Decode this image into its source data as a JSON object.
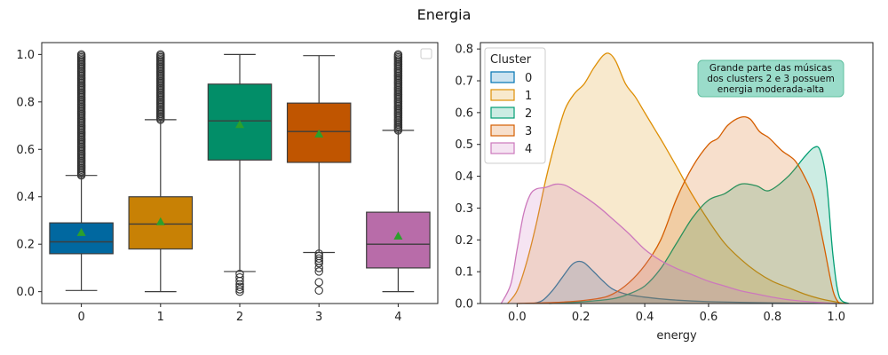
{
  "figure": {
    "suptitle": "Energia"
  },
  "chart_data": [
    {
      "type": "box",
      "title": "",
      "xlabel": "",
      "ylabel": "",
      "categories": [
        "0",
        "1",
        "2",
        "3",
        "4"
      ],
      "ylim": [
        -0.05,
        1.05
      ],
      "yticks": [
        "0.0",
        "0.2",
        "0.4",
        "0.6",
        "0.8",
        "1.0"
      ],
      "show_means": true,
      "mean_marker_color": "#2ca02c",
      "empty_legend": true,
      "boxes": [
        {
          "category": "0",
          "color": "#0173b2",
          "whisker_low": 0.005,
          "q1": 0.16,
          "median": 0.21,
          "q3": 0.29,
          "whisker_high": 0.49,
          "mean": 0.25,
          "fliers_low": [],
          "fliers_high_range": [
            0.49,
            1.0
          ]
        },
        {
          "category": "1",
          "color": "#de8f05",
          "whisker_low": 0.0,
          "q1": 0.18,
          "median": 0.285,
          "q3": 0.4,
          "whisker_high": 0.725,
          "mean": 0.295,
          "fliers_low": [],
          "fliers_high_range": [
            0.725,
            1.0
          ]
        },
        {
          "category": "2",
          "color": "#029e73",
          "whisker_low": 0.085,
          "q1": 0.555,
          "median": 0.72,
          "q3": 0.875,
          "whisker_high": 1.0,
          "mean": 0.705,
          "fliers_low": [
            0.0,
            0.01,
            0.02,
            0.03,
            0.045,
            0.06,
            0.075
          ],
          "fliers_high_range": null
        },
        {
          "category": "3",
          "color": "#d55e00",
          "whisker_low": 0.165,
          "q1": 0.545,
          "median": 0.675,
          "q3": 0.795,
          "whisker_high": 0.995,
          "mean": 0.665,
          "fliers_low": [
            0.005,
            0.04,
            0.085,
            0.1,
            0.12,
            0.13,
            0.14,
            0.15,
            0.16
          ],
          "fliers_high_range": null
        },
        {
          "category": "4",
          "color": "#cc78bc",
          "whisker_low": 0.0,
          "q1": 0.1,
          "median": 0.2,
          "q3": 0.335,
          "whisker_high": 0.68,
          "mean": 0.235,
          "fliers_low": [],
          "fliers_high_range": [
            0.68,
            1.0
          ]
        }
      ]
    },
    {
      "type": "kde",
      "title": "",
      "xlabel": "energy",
      "ylabel": "",
      "xlim": [
        -0.115,
        1.115
      ],
      "ylim": [
        0,
        0.82
      ],
      "xticks": [
        "0.0",
        "0.2",
        "0.4",
        "0.6",
        "0.8",
        "1.0"
      ],
      "yticks": [
        "0.0",
        "0.1",
        "0.2",
        "0.3",
        "0.4",
        "0.5",
        "0.6",
        "0.7",
        "0.8"
      ],
      "legend": {
        "title": "Cluster",
        "placement": "upper-left",
        "entries": [
          "0",
          "1",
          "2",
          "3",
          "4"
        ]
      },
      "annotation": {
        "text_lines": [
          "Grande parte das músicas",
          "dos clusters 2 e 3 possuem",
          "energia moderada-alta"
        ],
        "box_color": "#8fd8c4",
        "edge_color": "#5fbf9f"
      },
      "series": [
        {
          "name": "0",
          "color": "#0173b2",
          "x": [
            0.05,
            0.08,
            0.11,
            0.14,
            0.17,
            0.19,
            0.21,
            0.24,
            0.27,
            0.3,
            0.34,
            0.4,
            0.48,
            0.6,
            0.8,
            1.0
          ],
          "y": [
            0.0,
            0.01,
            0.04,
            0.08,
            0.12,
            0.132,
            0.128,
            0.1,
            0.07,
            0.045,
            0.03,
            0.02,
            0.012,
            0.006,
            0.002,
            0.0
          ]
        },
        {
          "name": "1",
          "color": "#de8f05",
          "x": [
            -0.03,
            0.0,
            0.03,
            0.06,
            0.09,
            0.12,
            0.15,
            0.18,
            0.21,
            0.24,
            0.27,
            0.29,
            0.31,
            0.34,
            0.37,
            0.4,
            0.43,
            0.46,
            0.5,
            0.55,
            0.6,
            0.65,
            0.7,
            0.75,
            0.8,
            0.85,
            0.9,
            0.95,
            1.0,
            1.03
          ],
          "y": [
            0.0,
            0.04,
            0.13,
            0.25,
            0.39,
            0.51,
            0.61,
            0.66,
            0.69,
            0.74,
            0.78,
            0.785,
            0.76,
            0.69,
            0.65,
            0.6,
            0.55,
            0.5,
            0.43,
            0.34,
            0.26,
            0.19,
            0.14,
            0.1,
            0.07,
            0.05,
            0.03,
            0.015,
            0.005,
            0.0
          ]
        },
        {
          "name": "2",
          "color": "#029e73",
          "x": [
            0.1,
            0.2,
            0.3,
            0.35,
            0.4,
            0.45,
            0.5,
            0.55,
            0.6,
            0.65,
            0.7,
            0.75,
            0.79,
            0.85,
            0.9,
            0.93,
            0.95,
            0.97,
            0.99,
            1.01,
            1.04
          ],
          "y": [
            0.0,
            0.005,
            0.015,
            0.03,
            0.055,
            0.11,
            0.19,
            0.27,
            0.325,
            0.345,
            0.375,
            0.37,
            0.355,
            0.4,
            0.46,
            0.49,
            0.48,
            0.38,
            0.15,
            0.02,
            0.0
          ]
        },
        {
          "name": "3",
          "color": "#d55e00",
          "x": [
            0.0,
            0.15,
            0.25,
            0.3,
            0.35,
            0.4,
            0.45,
            0.5,
            0.55,
            0.6,
            0.63,
            0.66,
            0.7,
            0.73,
            0.76,
            0.79,
            0.83,
            0.87,
            0.9,
            0.93,
            0.96,
            0.99,
            1.01
          ],
          "y": [
            0.0,
            0.005,
            0.015,
            0.03,
            0.065,
            0.12,
            0.2,
            0.33,
            0.43,
            0.5,
            0.52,
            0.56,
            0.585,
            0.58,
            0.54,
            0.52,
            0.48,
            0.45,
            0.4,
            0.33,
            0.19,
            0.04,
            0.0
          ]
        },
        {
          "name": "4",
          "color": "#cc78bc",
          "x": [
            -0.05,
            -0.02,
            0.0,
            0.02,
            0.04,
            0.06,
            0.09,
            0.12,
            0.15,
            0.18,
            0.22,
            0.26,
            0.3,
            0.35,
            0.4,
            0.45,
            0.5,
            0.55,
            0.6,
            0.65,
            0.7,
            0.75,
            0.8,
            0.85,
            0.9,
            0.95,
            1.0
          ],
          "y": [
            0.0,
            0.06,
            0.17,
            0.28,
            0.34,
            0.36,
            0.365,
            0.375,
            0.372,
            0.355,
            0.33,
            0.3,
            0.265,
            0.22,
            0.17,
            0.135,
            0.11,
            0.09,
            0.07,
            0.055,
            0.04,
            0.03,
            0.02,
            0.012,
            0.007,
            0.003,
            0.0
          ]
        }
      ]
    }
  ]
}
